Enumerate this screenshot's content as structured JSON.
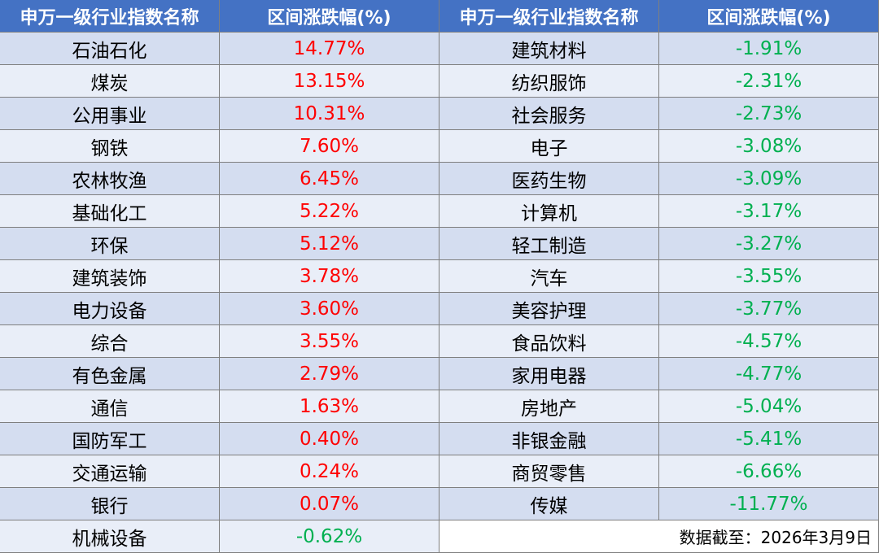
{
  "table": {
    "header": [
      "申万一级行业指数名称",
      "区间涨跌幅(%)",
      "申万一级行业指数名称",
      "区间涨跌幅(%)"
    ],
    "left_rows": [
      [
        "石油石化",
        "14.77%"
      ],
      [
        "煤炭",
        "13.15%"
      ],
      [
        "公用事业",
        "10.31%"
      ],
      [
        "钢铁",
        "7.60%"
      ],
      [
        "农林牧渔",
        "6.45%"
      ],
      [
        "基础化工",
        "5.22%"
      ],
      [
        "环保",
        "5.12%"
      ],
      [
        "建筑装饰",
        "3.78%"
      ],
      [
        "电力设备",
        "3.60%"
      ],
      [
        "综合",
        "3.55%"
      ],
      [
        "有色金属",
        "2.79%"
      ],
      [
        "通信",
        "1.63%"
      ],
      [
        "国防军工",
        "0.40%"
      ],
      [
        "交通运输",
        "0.24%"
      ],
      [
        "银行",
        "0.07%"
      ],
      [
        "机械设备",
        "-0.62%"
      ]
    ],
    "right_rows": [
      [
        "建筑材料",
        "-1.91%"
      ],
      [
        "纺织服饰",
        "-2.31%"
      ],
      [
        "社会服务",
        "-2.73%"
      ],
      [
        "电子",
        "-3.08%"
      ],
      [
        "医药生物",
        "-3.09%"
      ],
      [
        "计算机",
        "-3.17%"
      ],
      [
        "轻工制造",
        "-3.27%"
      ],
      [
        "汽车",
        "-3.55%"
      ],
      [
        "美容护理",
        "-3.77%"
      ],
      [
        "食品饮料",
        "-4.57%"
      ],
      [
        "家用电器",
        "-4.77%"
      ],
      [
        "房地产",
        "-5.04%"
      ],
      [
        "非银金融",
        "-5.41%"
      ],
      [
        "商贸零售",
        "-6.66%"
      ],
      [
        "传媒",
        "-11.77%"
      ]
    ],
    "note": "数据截至：2026年3月9日"
  }
}
